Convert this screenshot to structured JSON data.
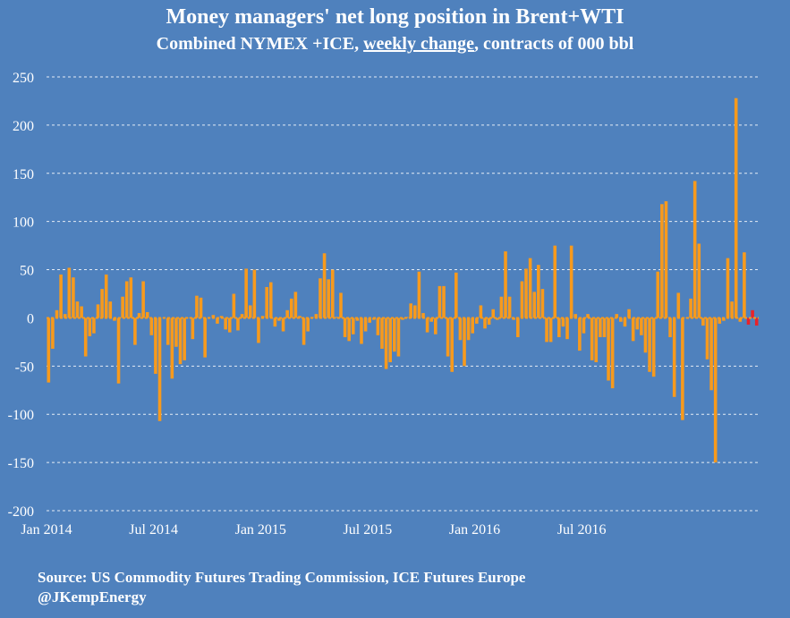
{
  "title": "Money managers' net long position in  Brent+WTI",
  "subtitle": {
    "pre": "Combined NYMEX +ICE, ",
    "underlined": "weekly change",
    "post": ", contracts of 000 bbl"
  },
  "source": "Source: US Commodity Futures Trading Commission, ICE Futures Europe",
  "handle": "@JKempEnergy",
  "colors": {
    "background": "#4f81bd",
    "bar": "#f79a1d",
    "highlight": "#e8232a",
    "gridline": "#ffffff",
    "text": "#ffffff"
  },
  "chart_data": {
    "type": "bar",
    "ylim": [
      -200,
      250
    ],
    "yticks": [
      250,
      200,
      150,
      100,
      50,
      0,
      -50,
      -100,
      -150,
      -200
    ],
    "ytick_labels": [
      "250",
      "200",
      "150",
      "100",
      "50",
      "0",
      "-50",
      "-100",
      "-150",
      "-200"
    ],
    "xtick_labels": [
      "Jan 2014",
      "Jul 2014",
      "Jan 2015",
      "Jul 2015",
      "Jan 2016",
      "Jul 2016"
    ],
    "xtick_weeks": [
      0,
      26,
      52,
      78,
      104,
      130
    ],
    "grid": true,
    "series": [
      {
        "values": [
          -67,
          -32,
          8,
          45,
          4,
          52,
          42,
          17,
          12,
          -40,
          -19,
          -16,
          14,
          30,
          45,
          17,
          -3,
          -68,
          22,
          38,
          42,
          -28,
          5,
          38,
          6,
          -18,
          -58,
          -107,
          0,
          -28,
          -63,
          -30,
          -48,
          -44,
          0,
          -22,
          23,
          21,
          -41,
          0,
          3,
          -6,
          2,
          -12,
          -15,
          25,
          -13,
          4,
          51,
          13,
          50,
          -26,
          2,
          32,
          37,
          -9,
          -3,
          -14,
          8,
          20,
          27,
          2,
          -28,
          -14,
          1,
          4,
          41,
          67,
          40,
          50,
          1,
          26,
          -20,
          -24,
          -17,
          -3,
          -27,
          -14,
          -5,
          -2,
          -18,
          -32,
          -53,
          -46,
          -35,
          -40,
          -2,
          1,
          15,
          13,
          48,
          5,
          -15,
          -4,
          -17,
          33,
          33,
          -40,
          -56,
          47,
          -23,
          -50,
          -23,
          -16,
          -6,
          13,
          -11,
          -7,
          9,
          -2,
          22,
          69,
          22,
          -2,
          -20,
          38,
          51,
          62,
          27,
          55,
          30,
          -25,
          -25,
          75,
          -20,
          -9,
          -22,
          75,
          4,
          -34,
          -16,
          4,
          -44,
          -46,
          -20,
          -20,
          -65,
          -73,
          4,
          -4,
          -9,
          9,
          -24,
          -12,
          -18,
          -36,
          -56,
          -61,
          48,
          118,
          121,
          -20,
          -82,
          26,
          -106,
          0,
          20,
          142,
          77,
          -8,
          -43,
          -75,
          -150,
          -6,
          -3,
          62,
          17,
          228,
          -4,
          68,
          -7,
          8,
          -8
        ]
      }
    ],
    "highlight_last_n": 3
  }
}
